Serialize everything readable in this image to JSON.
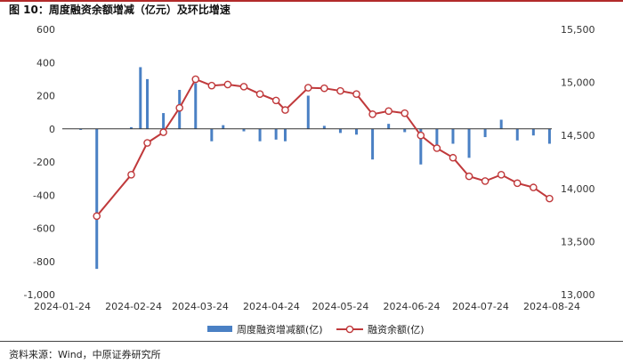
{
  "title": "图 10：周度融资余额增减（亿元）及环比增速",
  "source": "资料来源：Wind，中原证券研究所",
  "chart_data": {
    "type": "bar+line",
    "x_ticks": [
      "2024-01-24",
      "2024-02-24",
      "2024-03-24",
      "2024-04-24",
      "2024-05-24",
      "2024-06-24",
      "2024-07-24",
      "2024-08-24"
    ],
    "left_axis": {
      "min": -1000,
      "max": 600,
      "step": 200,
      "ticks": [
        "600",
        "400",
        "200",
        "0",
        "-200",
        "-400",
        "-600",
        "-800",
        "-1,000"
      ]
    },
    "right_axis": {
      "min": 13000,
      "max": 15500,
      "step": 500,
      "ticks": [
        "15,500",
        "15,000",
        "14,500",
        "14,000",
        "13,500",
        "13,000"
      ]
    },
    "grid": false,
    "legend_position": "bottom",
    "series": [
      {
        "name": "周度融资增减额(亿)",
        "kind": "bar",
        "axis": "left",
        "color": "#4a80c4",
        "points": [
          [
            "2024-02-01",
            0
          ],
          [
            "2024-02-08",
            -845
          ],
          [
            "2024-02-23",
            10
          ],
          [
            "2024-02-27",
            372
          ],
          [
            "2024-03-01",
            300
          ],
          [
            "2024-03-08",
            95
          ],
          [
            "2024-03-15",
            235
          ],
          [
            "2024-03-22",
            275
          ],
          [
            "2024-03-29",
            -75
          ],
          [
            "2024-04-03",
            22
          ],
          [
            "2024-04-12",
            -15
          ],
          [
            "2024-04-19",
            -75
          ],
          [
            "2024-04-26",
            -65
          ],
          [
            "2024-04-30",
            -75
          ],
          [
            "2024-05-10",
            200
          ],
          [
            "2024-05-17",
            18
          ],
          [
            "2024-05-24",
            -25
          ],
          [
            "2024-05-31",
            -35
          ],
          [
            "2024-06-07",
            -185
          ],
          [
            "2024-06-14",
            30
          ],
          [
            "2024-06-21",
            -20
          ],
          [
            "2024-06-28",
            -215
          ],
          [
            "2024-07-05",
            -105
          ],
          [
            "2024-07-12",
            -90
          ],
          [
            "2024-07-19",
            -175
          ],
          [
            "2024-07-26",
            -50
          ],
          [
            "2024-08-02",
            55
          ],
          [
            "2024-08-09",
            -70
          ],
          [
            "2024-08-16",
            -40
          ],
          [
            "2024-08-23",
            -90
          ]
        ]
      },
      {
        "name": "融资余额(亿)",
        "kind": "line",
        "axis": "right",
        "color": "#c0393b",
        "points": [
          [
            "2024-02-08",
            13740
          ],
          [
            "2024-02-23",
            14130
          ],
          [
            "2024-03-01",
            14430
          ],
          [
            "2024-03-08",
            14530
          ],
          [
            "2024-03-15",
            14760
          ],
          [
            "2024-03-22",
            15030
          ],
          [
            "2024-03-29",
            14970
          ],
          [
            "2024-04-05",
            14980
          ],
          [
            "2024-04-12",
            14960
          ],
          [
            "2024-04-19",
            14890
          ],
          [
            "2024-04-26",
            14830
          ],
          [
            "2024-04-30",
            14740
          ],
          [
            "2024-05-10",
            14950
          ],
          [
            "2024-05-17",
            14945
          ],
          [
            "2024-05-24",
            14920
          ],
          [
            "2024-05-31",
            14890
          ],
          [
            "2024-06-07",
            14700
          ],
          [
            "2024-06-14",
            14730
          ],
          [
            "2024-06-21",
            14710
          ],
          [
            "2024-06-28",
            14500
          ],
          [
            "2024-07-05",
            14380
          ],
          [
            "2024-07-12",
            14290
          ],
          [
            "2024-07-19",
            14115
          ],
          [
            "2024-07-26",
            14070
          ],
          [
            "2024-08-02",
            14130
          ],
          [
            "2024-08-09",
            14050
          ],
          [
            "2024-08-16",
            14010
          ],
          [
            "2024-08-23",
            13905
          ]
        ]
      }
    ]
  }
}
